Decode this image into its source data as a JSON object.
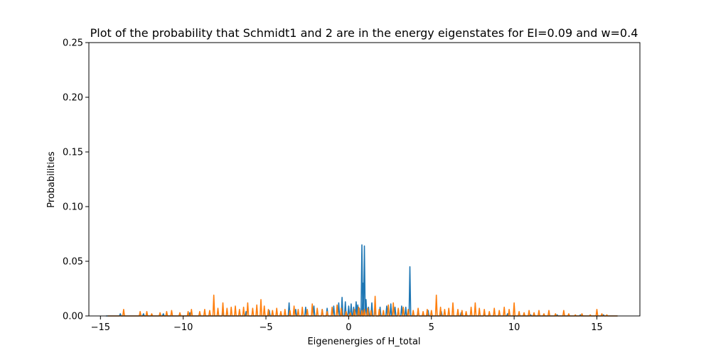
{
  "chart_data": {
    "type": "line",
    "title": "Plot of the probability that Schmidt1 and 2 are in the energy eigenstates for EI=0.09 and w=0.4",
    "xlabel": "Eigenenergies of H_total",
    "ylabel": "Probabilities",
    "xlim": [
      -15.7,
      17.6
    ],
    "ylim": [
      0,
      0.25
    ],
    "grid": false,
    "legend": "none",
    "x_ticks": [
      -15,
      -10,
      -5,
      0,
      5,
      10,
      15
    ],
    "x_tick_labels": [
      "−15",
      "−10",
      "−5",
      "0",
      "5",
      "10",
      "15"
    ],
    "y_ticks": [
      0,
      0.05,
      0.1,
      0.15,
      0.2,
      0.25
    ],
    "y_tick_labels": [
      "0.00",
      "0.05",
      "0.10",
      "0.15",
      "0.20",
      "0.25"
    ],
    "series": [
      {
        "color": "#1f77b4",
        "peaks": [
          [
            -14.6,
            0.0
          ],
          [
            -13.8,
            0.002
          ],
          [
            -12.4,
            0.002
          ],
          [
            -11.2,
            0.002
          ],
          [
            -9.6,
            0.003
          ],
          [
            -7.6,
            0.004
          ],
          [
            -6.2,
            0.004
          ],
          [
            -4.8,
            0.005
          ],
          [
            -3.6,
            0.012
          ],
          [
            -3.2,
            0.006
          ],
          [
            -2.6,
            0.008
          ],
          [
            -2.1,
            0.009
          ],
          [
            -1.6,
            0.006
          ],
          [
            -1.3,
            0.007
          ],
          [
            -0.9,
            0.009
          ],
          [
            -0.6,
            0.012
          ],
          [
            -0.4,
            0.017
          ],
          [
            -0.2,
            0.013
          ],
          [
            0.0,
            0.009
          ],
          [
            0.15,
            0.011
          ],
          [
            0.3,
            0.008
          ],
          [
            0.45,
            0.013
          ],
          [
            0.55,
            0.01
          ],
          [
            0.65,
            0.007
          ],
          [
            0.8,
            0.065
          ],
          [
            0.87,
            0.03
          ],
          [
            0.95,
            0.064
          ],
          [
            1.05,
            0.015
          ],
          [
            1.2,
            0.008
          ],
          [
            1.4,
            0.012
          ],
          [
            1.6,
            0.007
          ],
          [
            1.9,
            0.008
          ],
          [
            2.3,
            0.009
          ],
          [
            2.55,
            0.011
          ],
          [
            2.8,
            0.008
          ],
          [
            3.0,
            0.006
          ],
          [
            3.2,
            0.009
          ],
          [
            3.45,
            0.008
          ],
          [
            3.7,
            0.045
          ],
          [
            4.2,
            0.006
          ],
          [
            4.8,
            0.005
          ],
          [
            5.6,
            0.004
          ],
          [
            6.8,
            0.003
          ],
          [
            8.2,
            0.002
          ],
          [
            9.6,
            0.002
          ],
          [
            11.0,
            0.001
          ],
          [
            12.6,
            0.001
          ],
          [
            14.0,
            0.001
          ],
          [
            15.4,
            0.001
          ],
          [
            16.2,
            0.0
          ]
        ]
      },
      {
        "color": "#ff7f0e",
        "peaks": [
          [
            -14.5,
            0.0
          ],
          [
            -13.6,
            0.006
          ],
          [
            -12.6,
            0.004
          ],
          [
            -12.2,
            0.004
          ],
          [
            -11.9,
            0.002
          ],
          [
            -11.4,
            0.003
          ],
          [
            -11.0,
            0.004
          ],
          [
            -10.7,
            0.005
          ],
          [
            -10.2,
            0.003
          ],
          [
            -9.7,
            0.004
          ],
          [
            -9.5,
            0.006
          ],
          [
            -9.0,
            0.004
          ],
          [
            -8.7,
            0.006
          ],
          [
            -8.4,
            0.005
          ],
          [
            -8.15,
            0.019
          ],
          [
            -7.9,
            0.007
          ],
          [
            -7.6,
            0.012
          ],
          [
            -7.35,
            0.007
          ],
          [
            -7.1,
            0.008
          ],
          [
            -6.85,
            0.009
          ],
          [
            -6.6,
            0.006
          ],
          [
            -6.35,
            0.008
          ],
          [
            -6.1,
            0.012
          ],
          [
            -5.8,
            0.007
          ],
          [
            -5.55,
            0.01
          ],
          [
            -5.3,
            0.015
          ],
          [
            -5.1,
            0.009
          ],
          [
            -4.85,
            0.006
          ],
          [
            -4.6,
            0.005
          ],
          [
            -4.35,
            0.007
          ],
          [
            -4.1,
            0.004
          ],
          [
            -3.85,
            0.006
          ],
          [
            -3.55,
            0.005
          ],
          [
            -3.3,
            0.009
          ],
          [
            -3.05,
            0.006
          ],
          [
            -2.8,
            0.008
          ],
          [
            -2.5,
            0.006
          ],
          [
            -2.2,
            0.011
          ],
          [
            -1.9,
            0.007
          ],
          [
            -1.6,
            0.006
          ],
          [
            -1.3,
            0.004
          ],
          [
            -1.0,
            0.008
          ],
          [
            -0.7,
            0.01
          ],
          [
            -0.45,
            0.007
          ],
          [
            -0.15,
            0.004
          ],
          [
            0.1,
            0.003
          ],
          [
            0.35,
            0.006
          ],
          [
            0.6,
            0.008
          ],
          [
            0.8,
            0.005
          ],
          [
            0.95,
            0.006
          ],
          [
            1.15,
            0.007
          ],
          [
            1.35,
            0.005
          ],
          [
            1.6,
            0.018
          ],
          [
            1.85,
            0.006
          ],
          [
            2.1,
            0.005
          ],
          [
            2.4,
            0.01
          ],
          [
            2.7,
            0.012
          ],
          [
            3.0,
            0.007
          ],
          [
            3.3,
            0.008
          ],
          [
            3.6,
            0.006
          ],
          [
            3.9,
            0.005
          ],
          [
            4.2,
            0.007
          ],
          [
            4.5,
            0.004
          ],
          [
            4.75,
            0.006
          ],
          [
            5.0,
            0.005
          ],
          [
            5.3,
            0.019
          ],
          [
            5.55,
            0.008
          ],
          [
            5.8,
            0.006
          ],
          [
            6.05,
            0.007
          ],
          [
            6.3,
            0.012
          ],
          [
            6.6,
            0.006
          ],
          [
            6.85,
            0.005
          ],
          [
            7.1,
            0.004
          ],
          [
            7.4,
            0.008
          ],
          [
            7.65,
            0.012
          ],
          [
            7.9,
            0.007
          ],
          [
            8.2,
            0.006
          ],
          [
            8.5,
            0.004
          ],
          [
            8.8,
            0.007
          ],
          [
            9.1,
            0.005
          ],
          [
            9.4,
            0.008
          ],
          [
            9.7,
            0.006
          ],
          [
            10.0,
            0.012
          ],
          [
            10.3,
            0.004
          ],
          [
            10.6,
            0.003
          ],
          [
            10.9,
            0.005
          ],
          [
            11.2,
            0.003
          ],
          [
            11.5,
            0.005
          ],
          [
            11.8,
            0.002
          ],
          [
            12.1,
            0.005
          ],
          [
            12.5,
            0.002
          ],
          [
            13.0,
            0.005
          ],
          [
            13.3,
            0.002
          ],
          [
            13.7,
            0.001
          ],
          [
            14.1,
            0.002
          ],
          [
            14.6,
            0.001
          ],
          [
            15.0,
            0.006
          ],
          [
            15.3,
            0.002
          ],
          [
            15.6,
            0.001
          ],
          [
            16.2,
            0.0
          ]
        ]
      }
    ]
  }
}
